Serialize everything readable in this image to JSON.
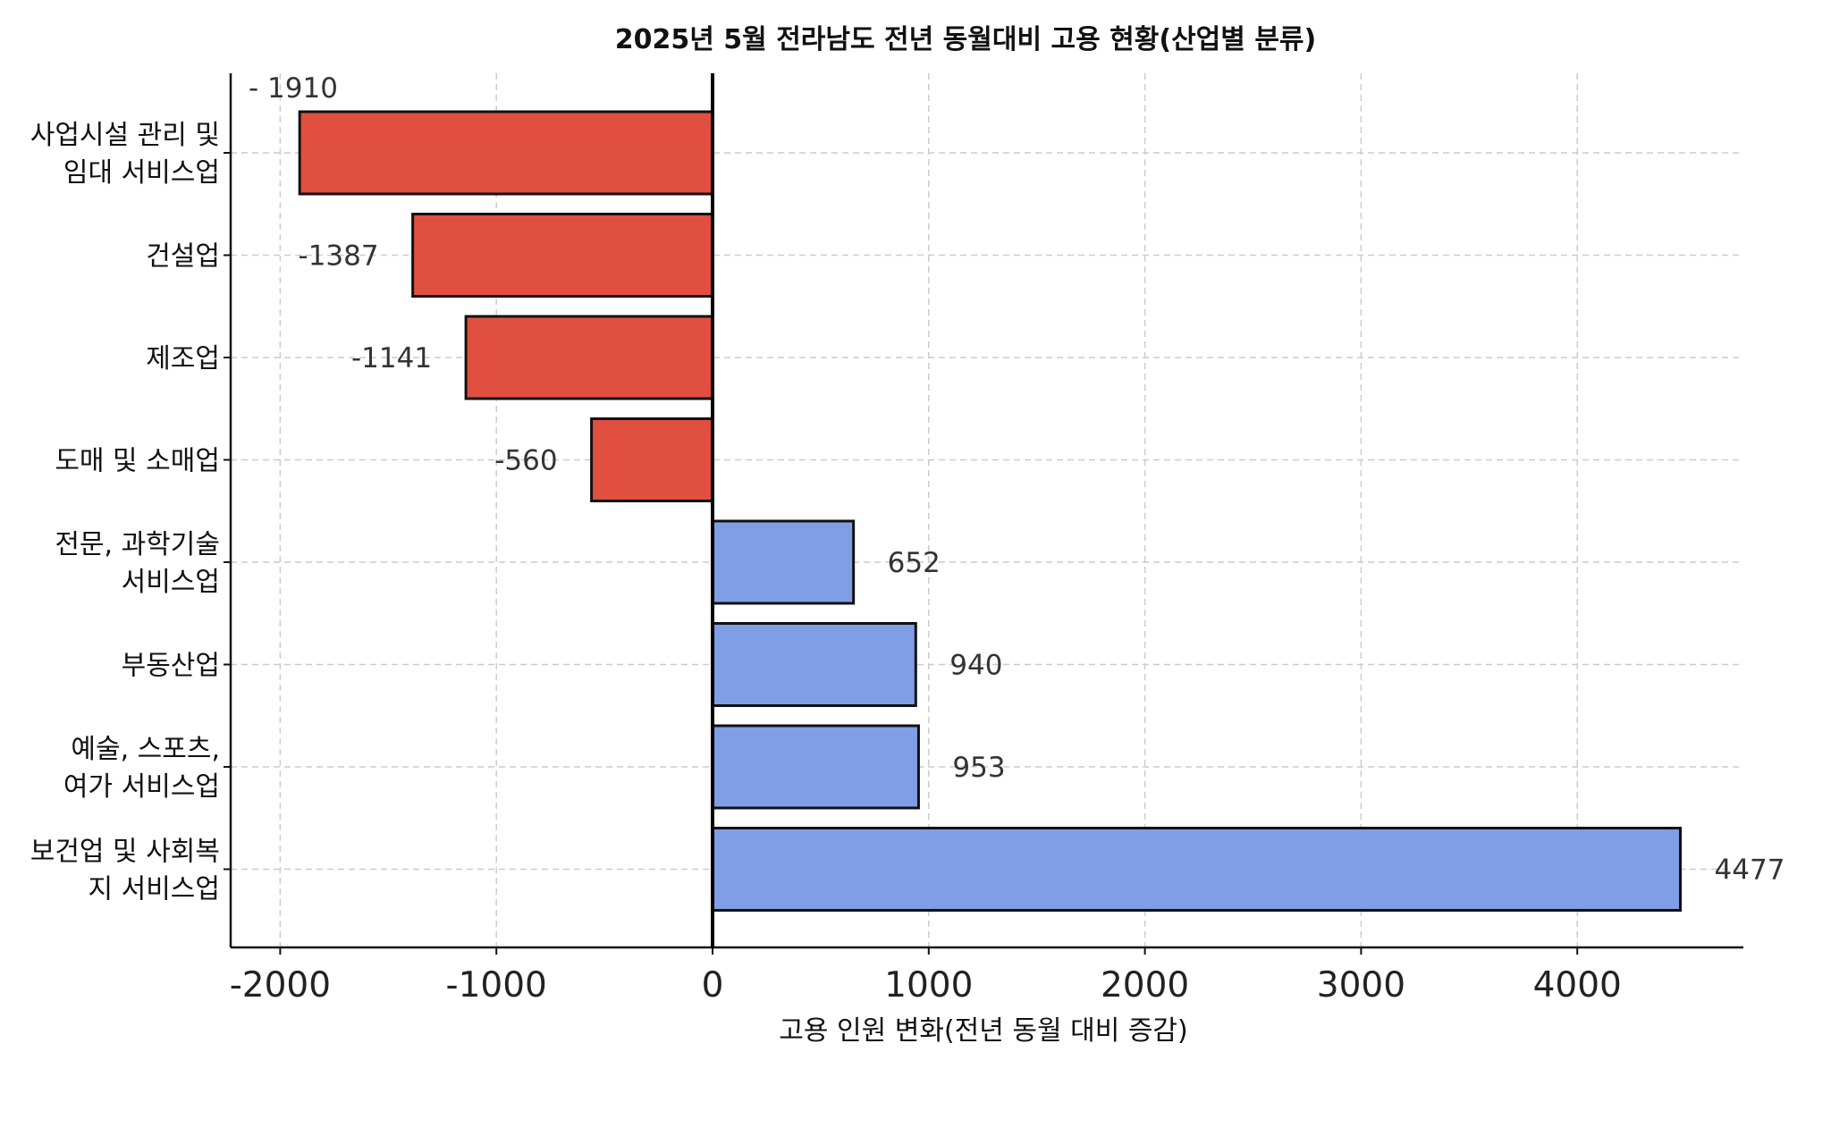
{
  "chart_data": {
    "type": "bar",
    "orientation": "horizontal",
    "title": "2025년 5월 전라남도 전년 동월대비 고용 현황(산업별 분류)",
    "xlabel": "고용 인원 변화(전년 동월 대비 증감)",
    "ylabel": "",
    "xlim": [
      -2230,
      4750
    ],
    "xticks": [
      -2000,
      -1000,
      0,
      1000,
      2000,
      3000,
      4000
    ],
    "xtick_labels": [
      "-2000",
      "-1000",
      "0",
      "1000",
      "2000",
      "3000",
      "4000"
    ],
    "grid": true,
    "colors": {
      "negative": "#e14f40",
      "positive": "#7f9ee6"
    },
    "categories": [
      {
        "lines": [
          "사업시설 관리 및",
          "임대 서비스업"
        ],
        "value": -1910,
        "value_label": "- 1910"
      },
      {
        "lines": [
          "건설업"
        ],
        "value": -1387,
        "value_label": "-1387"
      },
      {
        "lines": [
          "제조업"
        ],
        "value": -1141,
        "value_label": "-1141"
      },
      {
        "lines": [
          "도매 및 소매업"
        ],
        "value": -560,
        "value_label": "-560"
      },
      {
        "lines": [
          "전문, 과학기술",
          "서비스업"
        ],
        "value": 652,
        "value_label": "652"
      },
      {
        "lines": [
          "부동산업"
        ],
        "value": 940,
        "value_label": "940"
      },
      {
        "lines": [
          "예술, 스포츠,",
          "여가 서비스업"
        ],
        "value": 953,
        "value_label": "953"
      },
      {
        "lines": [
          "보건업 및 사회복",
          "지 서비스업"
        ],
        "value": 4477,
        "value_label": "4477"
      }
    ]
  }
}
